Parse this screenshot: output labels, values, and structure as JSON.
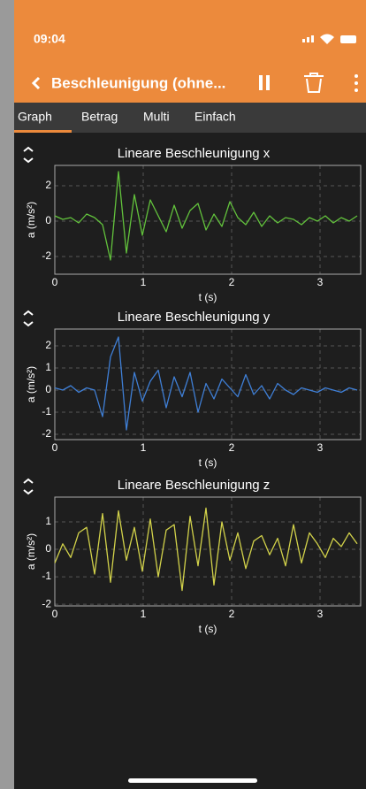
{
  "status_time": "09:04",
  "header": {
    "title": "Beschleunigung (ohne..."
  },
  "tabs": [
    "Graph",
    "Betrag",
    "Multi",
    "Einfach"
  ],
  "chart_data": [
    {
      "type": "line",
      "title": "Lineare Beschleunigung x",
      "xlabel": "t (s)",
      "ylabel": "a (m/s²)",
      "color": "#62c23c",
      "grid": true,
      "xlim": [
        0,
        3.46
      ],
      "xticks": [
        0,
        1,
        2,
        3
      ],
      "ylim": [
        -3,
        3.15
      ],
      "yticks": [
        -2,
        0,
        2
      ],
      "x": [
        0,
        0.09,
        0.18,
        0.27,
        0.36,
        0.45,
        0.54,
        0.63,
        0.72,
        0.81,
        0.9,
        0.99,
        1.08,
        1.17,
        1.26,
        1.35,
        1.44,
        1.53,
        1.62,
        1.71,
        1.8,
        1.89,
        1.98,
        2.07,
        2.16,
        2.25,
        2.34,
        2.43,
        2.52,
        2.61,
        2.7,
        2.79,
        2.88,
        2.97,
        3.06,
        3.15,
        3.24,
        3.33,
        3.42
      ],
      "values": [
        0.3,
        0.1,
        0.2,
        -0.1,
        0.4,
        0.2,
        -0.2,
        -2.2,
        2.8,
        -1.8,
        1.5,
        -0.8,
        1.2,
        0.3,
        -0.6,
        0.9,
        -0.4,
        0.6,
        1.0,
        -0.5,
        0.4,
        -0.3,
        1.1,
        0.2,
        -0.2,
        0.5,
        -0.3,
        0.3,
        -0.1,
        0.2,
        0.1,
        -0.2,
        0.2,
        0.0,
        0.3,
        -0.1,
        0.2,
        0.0,
        0.3
      ]
    },
    {
      "type": "line",
      "title": "Lineare Beschleunigung y",
      "xlabel": "t (s)",
      "ylabel": "a (m/s²)",
      "color": "#3f7fd6",
      "grid": true,
      "xlim": [
        0,
        3.46
      ],
      "xticks": [
        0,
        1,
        2,
        3
      ],
      "ylim": [
        -2.24,
        2.76
      ],
      "yticks": [
        -2,
        -1,
        0,
        1,
        2
      ],
      "x": [
        0,
        0.09,
        0.18,
        0.27,
        0.36,
        0.45,
        0.54,
        0.63,
        0.72,
        0.81,
        0.9,
        0.99,
        1.08,
        1.17,
        1.26,
        1.35,
        1.44,
        1.53,
        1.62,
        1.71,
        1.8,
        1.89,
        1.98,
        2.07,
        2.16,
        2.25,
        2.34,
        2.43,
        2.52,
        2.61,
        2.7,
        2.79,
        2.88,
        2.97,
        3.06,
        3.15,
        3.24,
        3.33,
        3.42
      ],
      "values": [
        0.1,
        0.0,
        0.2,
        -0.1,
        0.1,
        0.0,
        -1.2,
        1.5,
        2.4,
        -1.8,
        0.8,
        -0.5,
        0.4,
        0.9,
        -0.8,
        0.6,
        -0.3,
        0.8,
        -1.0,
        0.3,
        -0.4,
        0.5,
        0.1,
        -0.3,
        0.7,
        -0.2,
        0.2,
        -0.4,
        0.3,
        0.0,
        -0.2,
        0.1,
        0.0,
        -0.1,
        0.1,
        0.0,
        -0.1,
        0.1,
        0.0
      ]
    },
    {
      "type": "line",
      "title": "Lineare Beschleunigung z",
      "xlabel": "t (s)",
      "ylabel": "a (m/s²)",
      "color": "#d2d24a",
      "grid": true,
      "xlim": [
        0,
        3.46
      ],
      "xticks": [
        0,
        1,
        2,
        3
      ],
      "ylim": [
        -2.06,
        1.9
      ],
      "yticks": [
        -2,
        -1,
        0,
        1
      ],
      "x": [
        0,
        0.09,
        0.18,
        0.27,
        0.36,
        0.45,
        0.54,
        0.63,
        0.72,
        0.81,
        0.9,
        0.99,
        1.08,
        1.17,
        1.26,
        1.35,
        1.44,
        1.53,
        1.62,
        1.71,
        1.8,
        1.89,
        1.98,
        2.07,
        2.16,
        2.25,
        2.34,
        2.43,
        2.52,
        2.61,
        2.7,
        2.79,
        2.88,
        2.97,
        3.06,
        3.15,
        3.24,
        3.33,
        3.42
      ],
      "values": [
        -0.5,
        0.2,
        -0.3,
        0.6,
        0.8,
        -0.9,
        1.3,
        -1.2,
        1.4,
        -0.4,
        0.8,
        -0.8,
        1.1,
        -1.0,
        0.7,
        0.9,
        -1.5,
        1.2,
        -0.6,
        1.5,
        -1.3,
        1.0,
        -0.4,
        0.6,
        -0.7,
        0.3,
        0.5,
        -0.2,
        0.4,
        -0.6,
        0.9,
        -0.5,
        0.6,
        0.2,
        -0.3,
        0.4,
        0.1,
        0.6,
        0.2
      ]
    }
  ]
}
